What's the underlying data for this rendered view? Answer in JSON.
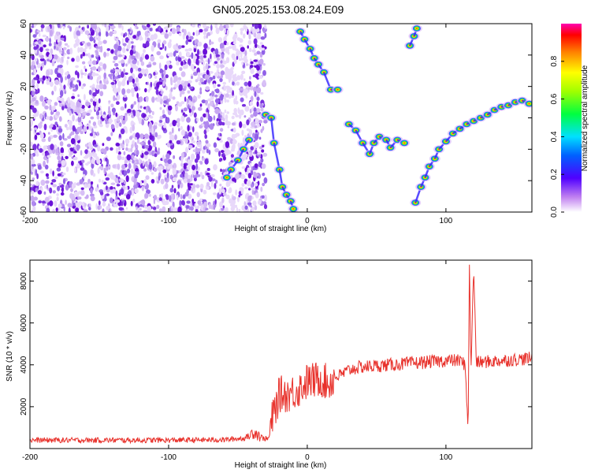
{
  "title": "GN05.2025.153.08.24.E09",
  "chart_data": [
    {
      "type": "heatmap",
      "xlabel": "Height of straight line (km)",
      "ylabel": "Frequency (Hz)",
      "xlim": [
        -200,
        162
      ],
      "ylim": [
        -60,
        60
      ],
      "xticks": [
        -200,
        -100,
        0,
        100
      ],
      "yticks": [
        -60,
        -40,
        -20,
        0,
        20,
        40,
        60
      ],
      "xtick_labels": [
        "-200",
        "-100",
        "0",
        "100"
      ],
      "ytick_labels": [
        "-60",
        "-40",
        "-20",
        "0",
        "20",
        "40",
        "60"
      ],
      "noise_region_x": [
        -200,
        -30
      ],
      "trails": [
        {
          "name": "descending-left-branch",
          "points": [
            [
              -42,
              -14
            ],
            [
              -46,
              -20
            ],
            [
              -50,
              -27
            ],
            [
              -55,
              -33
            ],
            [
              -58,
              -38
            ]
          ]
        },
        {
          "name": "falling-branch",
          "points": [
            [
              -30,
              2
            ],
            [
              -26,
              0
            ],
            [
              -24,
              -16
            ],
            [
              -20,
              -33
            ],
            [
              -18,
              -44
            ],
            [
              -15,
              -49
            ],
            [
              -12,
              -53
            ],
            [
              -10,
              -58
            ]
          ]
        },
        {
          "name": "upper-left-branch",
          "points": [
            [
              -5,
              55
            ],
            [
              -2,
              50
            ],
            [
              2,
              44
            ],
            [
              5,
              38
            ],
            [
              8,
              34
            ],
            [
              12,
              29
            ],
            [
              17,
              18
            ],
            [
              22,
              18
            ]
          ]
        },
        {
          "name": "middle-branch",
          "points": [
            [
              30,
              -4
            ],
            [
              35,
              -8
            ],
            [
              40,
              -16
            ],
            [
              45,
              -23
            ],
            [
              48,
              -16
            ],
            [
              52,
              -12
            ],
            [
              57,
              -14
            ],
            [
              60,
              -19
            ],
            [
              65,
              -14
            ],
            [
              70,
              -16
            ]
          ]
        },
        {
          "name": "upper-right-branch",
          "points": [
            [
              74,
              46
            ],
            [
              77,
              52
            ],
            [
              79,
              57
            ]
          ]
        },
        {
          "name": "rising-branch",
          "points": [
            [
              78,
              -54
            ],
            [
              82,
              -44
            ],
            [
              85,
              -38
            ],
            [
              88,
              -31
            ],
            [
              92,
              -26
            ],
            [
              95,
              -20
            ],
            [
              100,
              -15
            ],
            [
              105,
              -10
            ],
            [
              110,
              -7
            ],
            [
              115,
              -4
            ],
            [
              120,
              -2
            ],
            [
              125,
              0
            ],
            [
              130,
              2
            ],
            [
              135,
              5
            ],
            [
              140,
              7
            ],
            [
              145,
              8
            ],
            [
              150,
              10
            ],
            [
              155,
              11
            ],
            [
              160,
              9
            ]
          ]
        }
      ],
      "colorbar": {
        "label": "Normalized spectral amplitude",
        "range": [
          0,
          1
        ],
        "ticks": [
          0.0,
          0.2,
          0.4,
          0.6,
          0.8
        ],
        "tick_labels": [
          "0.0",
          "0.2",
          "0.4",
          "0.6",
          "0.8"
        ],
        "colors": [
          "#ffffff",
          "#a040e0",
          "#0000ff",
          "#00c0ff",
          "#00ff00",
          "#ffff00",
          "#ff8000",
          "#ff0000",
          "#ff00a0"
        ]
      }
    },
    {
      "type": "line",
      "xlabel": "Height of straight line (km)",
      "ylabel": "SNR (10 * v/v)",
      "xlim": [
        -200,
        162
      ],
      "ylim": [
        0,
        9000
      ],
      "xticks": [
        -200,
        -100,
        0,
        100
      ],
      "yticks": [
        2000,
        4000,
        6000,
        8000
      ],
      "xtick_labels": [
        "-200",
        "-100",
        "0",
        "100"
      ],
      "ytick_labels": [
        "2000",
        "4000",
        "6000",
        "8000"
      ],
      "color": "#e8322c",
      "series": [
        {
          "x": [
            -200,
            -150,
            -100,
            -60,
            -45,
            -38,
            -32,
            -28,
            -25,
            -20,
            -15,
            -10,
            -5,
            0,
            5,
            10,
            15,
            20,
            25,
            30,
            35,
            40,
            50,
            60,
            70,
            80,
            90,
            100,
            110,
            114,
            116,
            117,
            118,
            120,
            122,
            130,
            140,
            150,
            160
          ],
          "y": [
            400,
            400,
            400,
            420,
            500,
            800,
            500,
            450,
            1500,
            2600,
            2600,
            2700,
            2900,
            3200,
            3250,
            3350,
            3100,
            3400,
            3550,
            3750,
            3850,
            3900,
            3950,
            4000,
            4050,
            4100,
            4150,
            4200,
            4200,
            4000,
            700,
            9000,
            3800,
            8600,
            4100,
            4150,
            4200,
            4250,
            4300
          ]
        }
      ]
    }
  ]
}
